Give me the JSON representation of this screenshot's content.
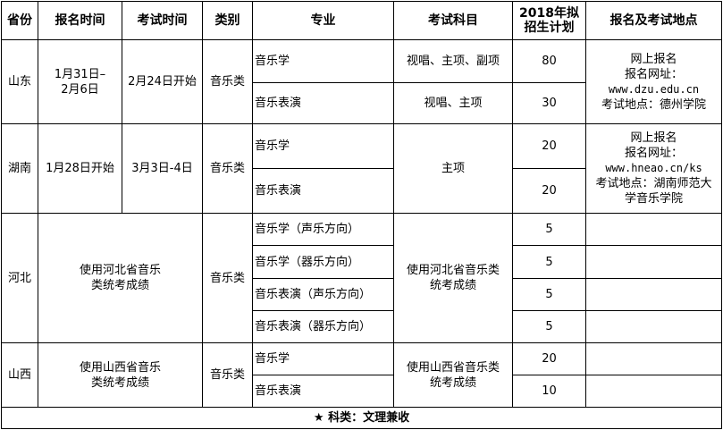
{
  "headers": [
    "省份",
    "报名时间",
    "考试时间",
    "类别",
    "专业",
    "考试科目",
    "2018年拟招生计划",
    "报名及考试地点"
  ],
  "shandong": {
    "province": "山东",
    "reg_time": "1月31日–2月6日",
    "exam_time": "2月24日开始",
    "category": "音乐类",
    "majors": [
      {
        "name": "音乐学",
        "subjects": "视唱、主项、副项",
        "plan": "80"
      },
      {
        "name": "音乐表演",
        "subjects": "视唱、主项",
        "plan": "30"
      }
    ],
    "location": {
      "l1": "网上报名",
      "l2": "报名网址：",
      "url": "www.dzu.edu.cn",
      "l4": "考试地点：德州学院"
    }
  },
  "hunan": {
    "province": "湖南",
    "reg_time": "1月28日开始",
    "exam_time": "3月3日-4日",
    "category": "音乐类",
    "subjects": "主项",
    "majors": [
      {
        "name": "音乐学",
        "plan": "20"
      },
      {
        "name": "音乐表演",
        "plan": "20"
      }
    ],
    "location": {
      "l1": "网上报名",
      "l2": "报名网址：",
      "url": "www.hneao.cn/ks",
      "l4": "考试地点：湖南师范大学音乐学院"
    }
  },
  "hebei": {
    "province": "河北",
    "time": "使用河北省音乐类统考成绩",
    "category": "音乐类",
    "subjects": "使用河北省音乐类统考成绩",
    "majors": [
      {
        "name": "音乐学（声乐方向）",
        "plan": "5"
      },
      {
        "name": "音乐学（器乐方向）",
        "plan": "5"
      },
      {
        "name": "音乐表演（声乐方向）",
        "plan": "5"
      },
      {
        "name": "音乐表演（器乐方向）",
        "plan": "5"
      }
    ]
  },
  "shanxi": {
    "province": "山西",
    "time": "使用山西省音乐类统考成绩",
    "category": "音乐类",
    "subjects": "使用山西省音乐类统考成绩",
    "majors": [
      {
        "name": "音乐学",
        "plan": "20"
      },
      {
        "name": "音乐表演",
        "plan": "10"
      }
    ]
  },
  "footer": "★ 科类：文理兼收"
}
